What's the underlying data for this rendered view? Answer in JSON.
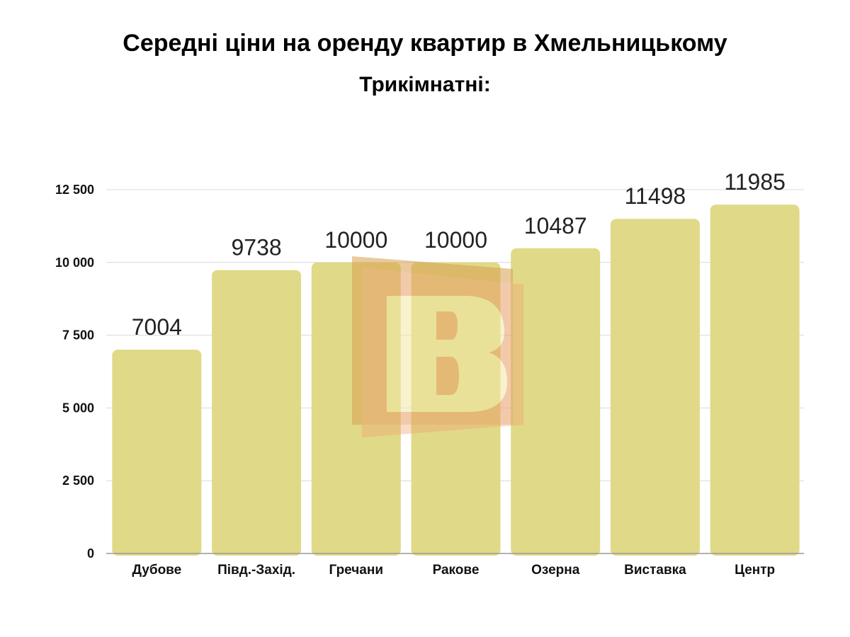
{
  "title": "Середні ціни на оренду квартир в Хмельницькому",
  "subtitle": "Трикімнатні:",
  "colors": {
    "bar": "#e0d987",
    "grid": "#d9d9d9",
    "axis": "#999999"
  },
  "chart_data": {
    "type": "bar",
    "title": "Середні ціни на оренду квартир в Хмельницькому",
    "subtitle": "Трикімнатні:",
    "categories": [
      "Дубове",
      "Півд.-Захід.",
      "Гречани",
      "Ракове",
      "Озерна",
      "Виставка",
      "Центр"
    ],
    "values": [
      7004,
      9738,
      10000,
      10000,
      10487,
      11498,
      11985
    ],
    "data_labels": [
      "7004",
      "9738",
      "10000",
      "10000",
      "10487",
      "11498",
      "11985"
    ],
    "ylim": [
      0,
      12500
    ],
    "yticks": [
      0,
      2500,
      5000,
      7500,
      10000,
      12500
    ],
    "ytick_labels": [
      "0",
      "2 500",
      "5 000",
      "7 500",
      "10 000",
      "12 500"
    ],
    "xlabel": "",
    "ylabel": "",
    "grid": true,
    "legend": "none"
  }
}
